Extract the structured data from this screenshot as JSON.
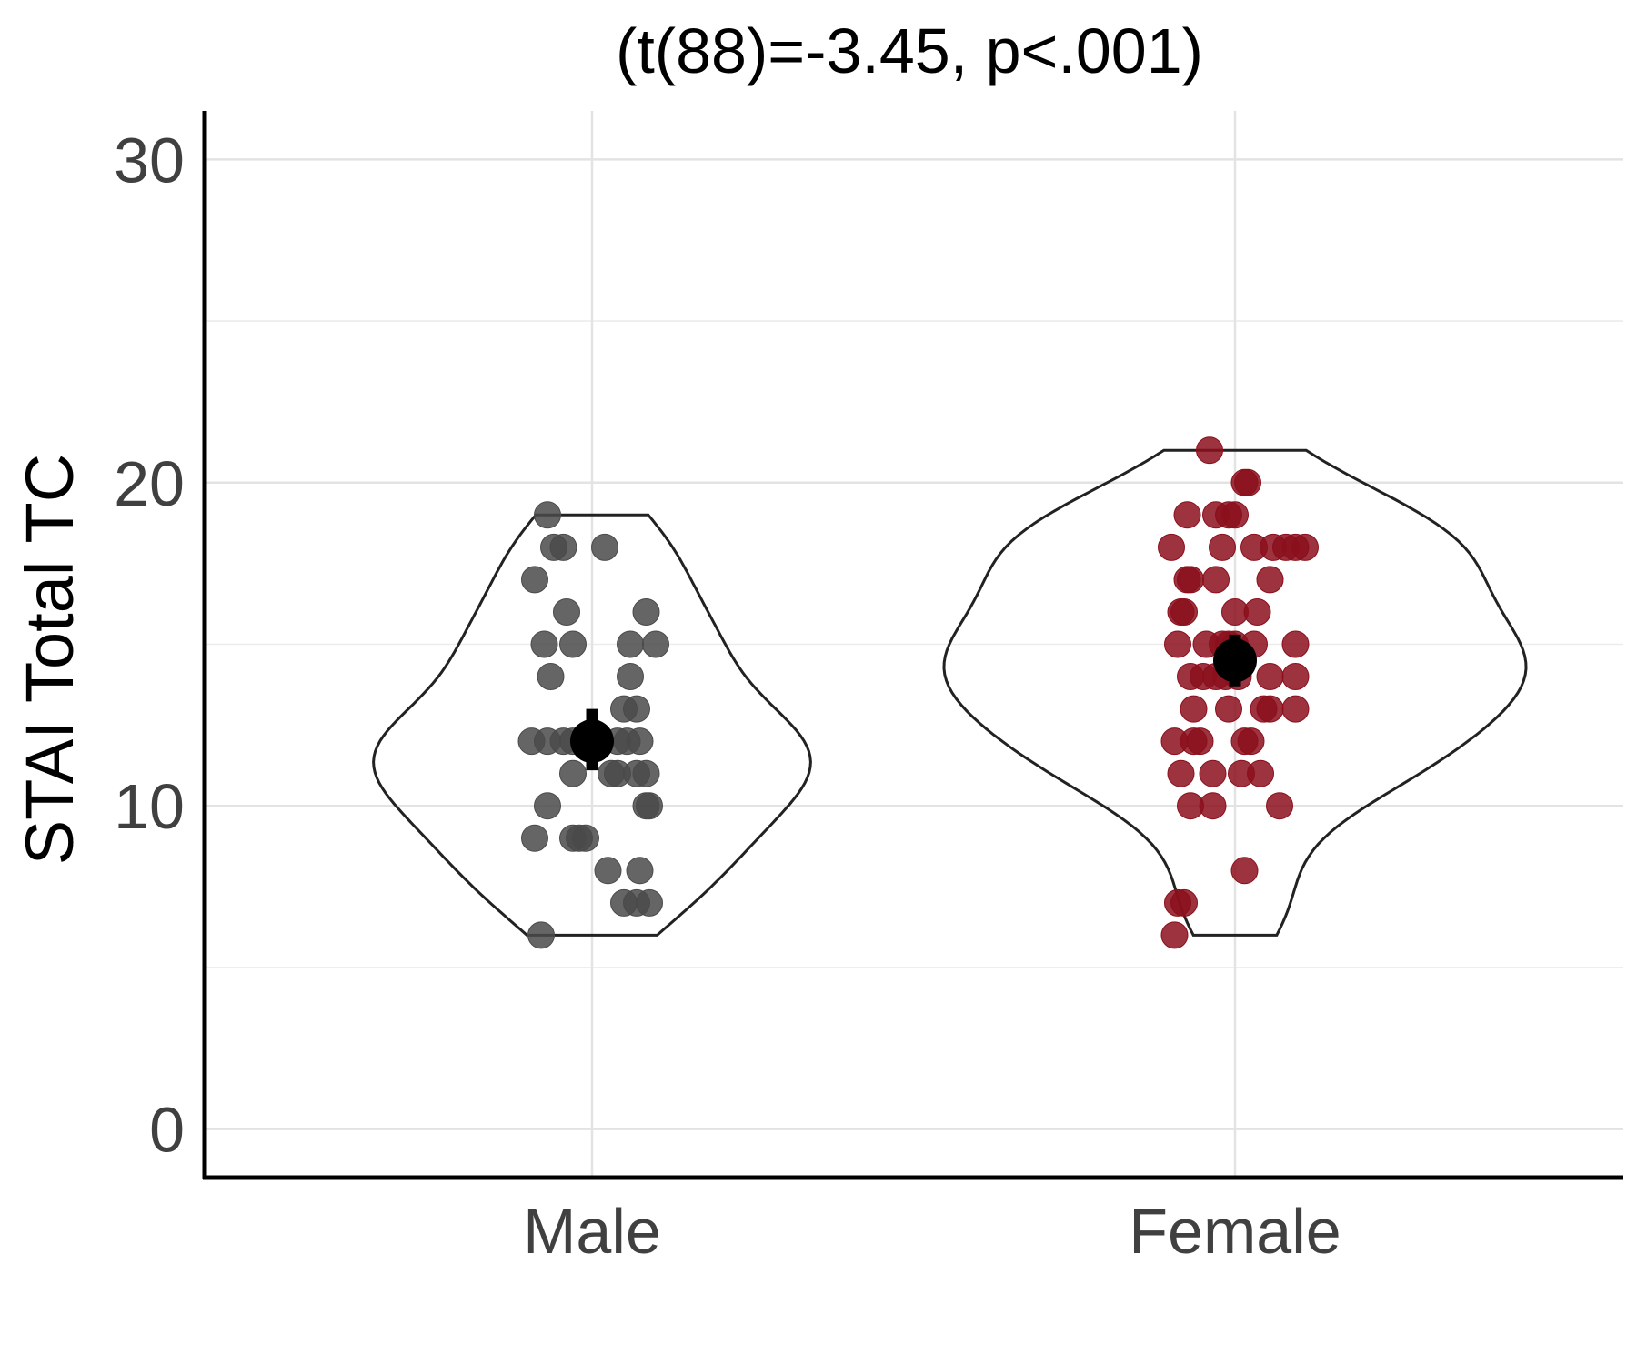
{
  "chart_data": {
    "type": "violin",
    "title": "(t(88)=-3.45, p<.001)",
    "xlabel": "",
    "ylabel": "STAI Total TC",
    "ylim": [
      -1.5,
      31.5
    ],
    "yticks": [
      0,
      10,
      20,
      30
    ],
    "categories": [
      "Male",
      "Female"
    ],
    "grid": true,
    "series": [
      {
        "name": "Male",
        "color": "#4a4a4a",
        "mean": 12,
        "ci": [
          11.1,
          13
        ],
        "range": [
          6,
          19
        ],
        "points": [
          [
            -0.07,
            19
          ],
          [
            -0.06,
            18
          ],
          [
            -0.045,
            18
          ],
          [
            0.02,
            18
          ],
          [
            -0.09,
            17
          ],
          [
            -0.04,
            16
          ],
          [
            0.085,
            16
          ],
          [
            -0.075,
            15
          ],
          [
            -0.03,
            15
          ],
          [
            0.06,
            15
          ],
          [
            0.1,
            15
          ],
          [
            -0.065,
            14
          ],
          [
            0.06,
            14
          ],
          [
            0.05,
            13
          ],
          [
            0.07,
            13
          ],
          [
            -0.095,
            12
          ],
          [
            -0.07,
            12
          ],
          [
            -0.045,
            12
          ],
          [
            -0.03,
            12
          ],
          [
            0.04,
            12
          ],
          [
            0.055,
            12
          ],
          [
            0.075,
            12
          ],
          [
            -0.03,
            11
          ],
          [
            0.03,
            11
          ],
          [
            0.04,
            11
          ],
          [
            0.07,
            11
          ],
          [
            0.085,
            11
          ],
          [
            -0.07,
            10
          ],
          [
            0.085,
            10
          ],
          [
            0.09,
            10
          ],
          [
            -0.09,
            9
          ],
          [
            -0.03,
            9
          ],
          [
            -0.02,
            9
          ],
          [
            -0.01,
            9
          ],
          [
            0.025,
            8
          ],
          [
            0.075,
            8
          ],
          [
            0.05,
            7
          ],
          [
            0.07,
            7
          ],
          [
            0.09,
            7
          ],
          [
            -0.08,
            6
          ]
        ]
      },
      {
        "name": "Female",
        "color": "#8b0f1c",
        "mean": 14.5,
        "ci": [
          13.7,
          15.3
        ],
        "range": [
          6,
          21
        ],
        "points": [
          [
            -0.04,
            21
          ],
          [
            0.015,
            20
          ],
          [
            0.02,
            20
          ],
          [
            -0.075,
            19
          ],
          [
            -0.03,
            19
          ],
          [
            -0.01,
            19
          ],
          [
            0.0,
            19
          ],
          [
            -0.1,
            18
          ],
          [
            -0.02,
            18
          ],
          [
            0.03,
            18
          ],
          [
            0.06,
            18
          ],
          [
            0.08,
            18
          ],
          [
            0.095,
            18
          ],
          [
            0.11,
            18
          ],
          [
            -0.075,
            17
          ],
          [
            -0.07,
            17
          ],
          [
            -0.03,
            17
          ],
          [
            0.055,
            17
          ],
          [
            -0.085,
            16
          ],
          [
            0.0,
            16
          ],
          [
            -0.08,
            16
          ],
          [
            0.035,
            16
          ],
          [
            -0.09,
            15
          ],
          [
            -0.045,
            15
          ],
          [
            -0.02,
            15
          ],
          [
            -0.01,
            15
          ],
          [
            0.0,
            15
          ],
          [
            0.03,
            15
          ],
          [
            0.095,
            15
          ],
          [
            -0.07,
            14
          ],
          [
            -0.05,
            14
          ],
          [
            -0.03,
            14
          ],
          [
            -0.015,
            14
          ],
          [
            0.005,
            14
          ],
          [
            0.055,
            14
          ],
          [
            0.095,
            14
          ],
          [
            -0.065,
            13
          ],
          [
            -0.01,
            13
          ],
          [
            0.045,
            13
          ],
          [
            0.055,
            13
          ],
          [
            0.095,
            13
          ],
          [
            -0.095,
            12
          ],
          [
            -0.065,
            12
          ],
          [
            -0.055,
            12
          ],
          [
            0.015,
            12
          ],
          [
            0.025,
            12
          ],
          [
            -0.085,
            11
          ],
          [
            -0.035,
            11
          ],
          [
            0.01,
            11
          ],
          [
            0.04,
            11
          ],
          [
            -0.07,
            10
          ],
          [
            -0.035,
            10
          ],
          [
            0.07,
            10
          ],
          [
            0.015,
            8
          ],
          [
            -0.09,
            7
          ],
          [
            -0.08,
            7
          ],
          [
            -0.095,
            6
          ]
        ]
      }
    ]
  }
}
